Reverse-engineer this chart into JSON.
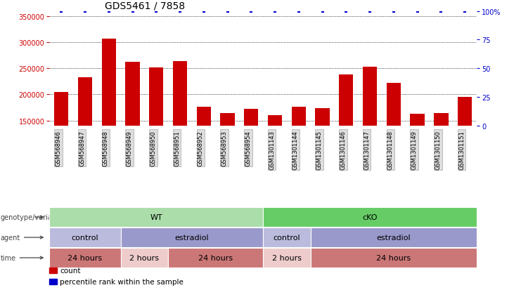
{
  "title": "GDS5461 / 7858",
  "samples": [
    "GSM568946",
    "GSM568947",
    "GSM568948",
    "GSM568949",
    "GSM568950",
    "GSM568951",
    "GSM568952",
    "GSM568953",
    "GSM568954",
    "GSM1301143",
    "GSM1301144",
    "GSM1301145",
    "GSM1301146",
    "GSM1301147",
    "GSM1301148",
    "GSM1301149",
    "GSM1301150",
    "GSM1301151"
  ],
  "counts": [
    205000,
    233000,
    307000,
    263000,
    252000,
    264000,
    177000,
    165000,
    172000,
    160000,
    177000,
    174000,
    238000,
    253000,
    222000,
    163000,
    164000,
    195000
  ],
  "percentile_rank": [
    100,
    100,
    100,
    100,
    100,
    100,
    100,
    100,
    100,
    100,
    100,
    100,
    100,
    100,
    100,
    100,
    100,
    100
  ],
  "ylim_left": [
    140000,
    360000
  ],
  "ylim_right": [
    0,
    100
  ],
  "yticks_left": [
    150000,
    200000,
    250000,
    300000,
    350000
  ],
  "yticks_right": [
    0,
    25,
    50,
    75,
    100
  ],
  "bar_color": "#cc0000",
  "dot_color": "#0000cc",
  "annotation_rows": [
    {
      "label": "genotype/variation",
      "segments": [
        {
          "text": "WT",
          "start": 0,
          "end": 9,
          "color": "#aaddaa"
        },
        {
          "text": "cKO",
          "start": 9,
          "end": 18,
          "color": "#66cc66"
        }
      ]
    },
    {
      "label": "agent",
      "segments": [
        {
          "text": "control",
          "start": 0,
          "end": 3,
          "color": "#bbbbdd"
        },
        {
          "text": "estradiol",
          "start": 3,
          "end": 9,
          "color": "#9999cc"
        },
        {
          "text": "control",
          "start": 9,
          "end": 11,
          "color": "#bbbbdd"
        },
        {
          "text": "estradiol",
          "start": 11,
          "end": 18,
          "color": "#9999cc"
        }
      ]
    },
    {
      "label": "time",
      "segments": [
        {
          "text": "24 hours",
          "start": 0,
          "end": 3,
          "color": "#cc7777"
        },
        {
          "text": "2 hours",
          "start": 3,
          "end": 5,
          "color": "#eecccc"
        },
        {
          "text": "24 hours",
          "start": 5,
          "end": 9,
          "color": "#cc7777"
        },
        {
          "text": "2 hours",
          "start": 9,
          "end": 11,
          "color": "#eecccc"
        },
        {
          "text": "24 hours",
          "start": 11,
          "end": 18,
          "color": "#cc7777"
        }
      ]
    }
  ],
  "legend_items": [
    {
      "color": "#cc0000",
      "label": "count"
    },
    {
      "color": "#0000cc",
      "label": "percentile rank within the sample"
    }
  ],
  "title_fontsize": 10,
  "tick_fontsize": 7,
  "annot_fontsize": 8,
  "sample_fontsize": 6,
  "left_tick_color": "#cc0000",
  "right_tick_color": "#0000cc",
  "sample_box_color": "#dddddd",
  "sample_box_edge": "#999999"
}
